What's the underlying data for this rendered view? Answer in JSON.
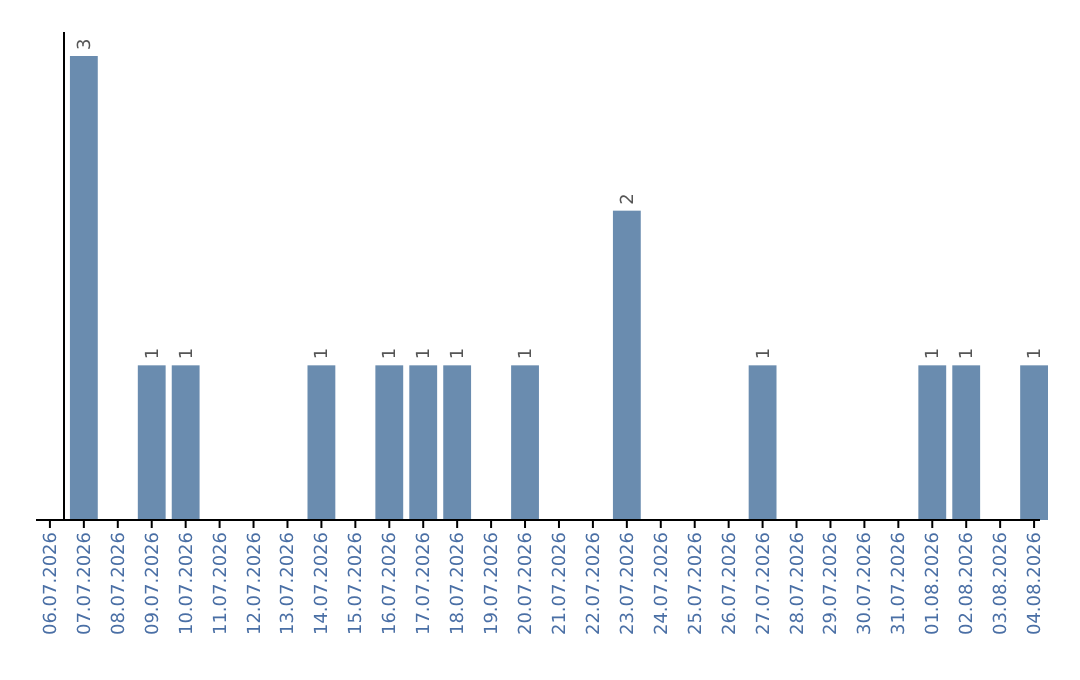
{
  "chart_data": {
    "type": "bar",
    "categories": [
      "06.07.2026",
      "07.07.2026",
      "08.07.2026",
      "09.07.2026",
      "10.07.2026",
      "11.07.2026",
      "12.07.2026",
      "13.07.2026",
      "14.07.2026",
      "15.07.2026",
      "16.07.2026",
      "17.07.2026",
      "18.07.2026",
      "19.07.2026",
      "20.07.2026",
      "21.07.2026",
      "22.07.2026",
      "23.07.2026",
      "24.07.2026",
      "25.07.2026",
      "26.07.2026",
      "27.07.2026",
      "28.07.2026",
      "29.07.2026",
      "30.07.2026",
      "31.07.2026",
      "01.08.2026",
      "02.08.2026",
      "03.08.2026",
      "04.08.2026"
    ],
    "values": [
      0,
      3,
      0,
      1,
      1,
      0,
      0,
      0,
      1,
      0,
      1,
      1,
      1,
      0,
      1,
      0,
      0,
      2,
      0,
      0,
      0,
      1,
      0,
      0,
      0,
      0,
      1,
      1,
      0,
      1
    ],
    "value_labels": [
      null,
      "3",
      null,
      "1",
      "1",
      null,
      null,
      null,
      "1",
      null,
      "1",
      "1",
      "1",
      null,
      "1",
      null,
      null,
      "2",
      null,
      null,
      null,
      "1",
      null,
      null,
      null,
      null,
      "1",
      "1",
      null,
      "1"
    ],
    "color": "#6a8caf",
    "ylim": [
      0,
      3
    ],
    "tick_labels": "x"
  }
}
